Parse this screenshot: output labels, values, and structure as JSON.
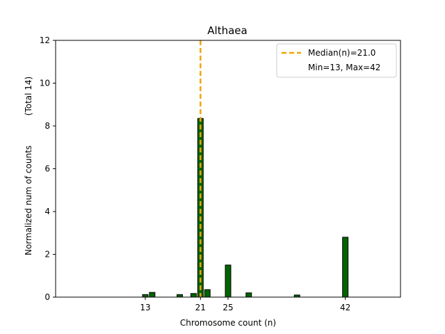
{
  "chart_data": {
    "type": "bar",
    "title": "Althaea",
    "xlabel": "Chromosome count (n)",
    "ylabel": "Normalized num of counts",
    "ylabel_extra": "(Total 14)",
    "xlim": [
      0,
      50
    ],
    "ylim": [
      0,
      12
    ],
    "xticks": [
      13,
      21,
      25,
      42
    ],
    "yticks": [
      0,
      2,
      4,
      6,
      8,
      10,
      12
    ],
    "x": [
      13,
      14,
      18,
      20,
      21,
      22,
      25,
      28,
      35,
      42
    ],
    "values": [
      0.12,
      0.22,
      0.12,
      0.17,
      8.35,
      0.35,
      1.5,
      0.2,
      0.1,
      2.8
    ],
    "bar_color": "#006400",
    "median_line": {
      "x": 21.0,
      "color": "#f0a500"
    },
    "legend": {
      "position": "top-right",
      "entries": [
        "Median(n)=21.0",
        "Min=13, Max=42"
      ]
    }
  }
}
